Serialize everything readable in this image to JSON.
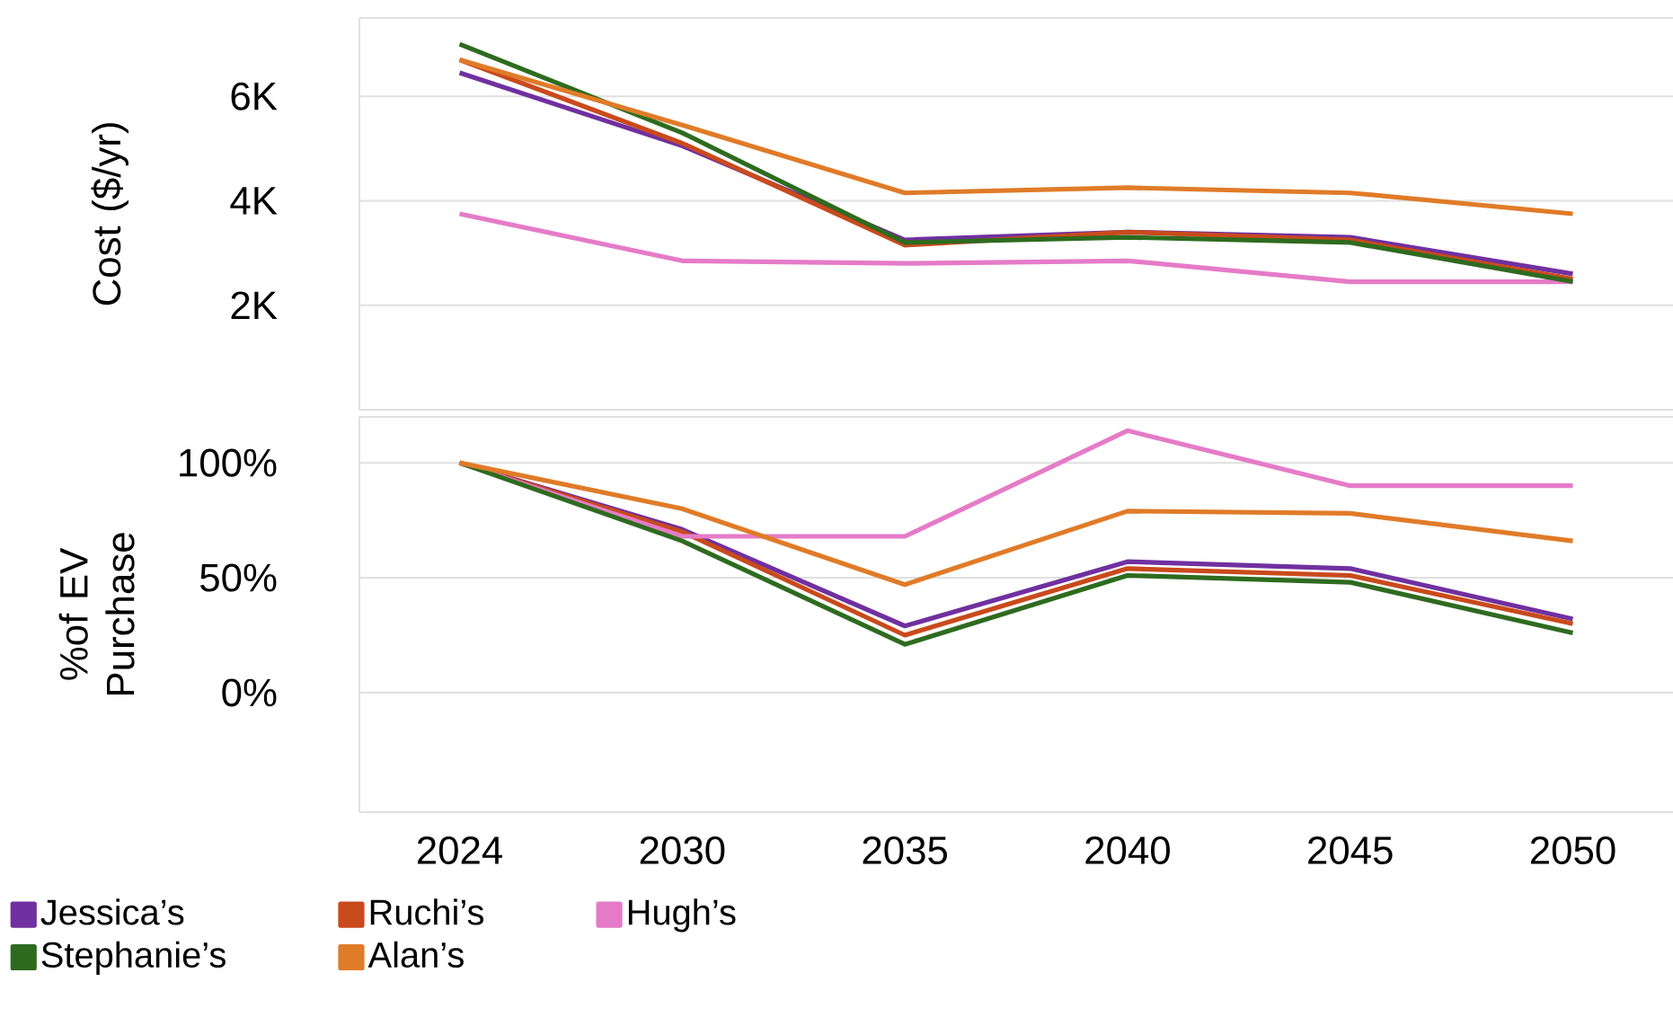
{
  "chart_data": [
    {
      "type": "line",
      "ylabel": "Cost ($/yr)",
      "categories": [
        "2024",
        "2030",
        "2035",
        "2040",
        "2045",
        "2050"
      ],
      "ylim": [
        0,
        7.5
      ],
      "yticks": [
        {
          "value": 2,
          "label": "2K"
        },
        {
          "value": 4,
          "label": "4K"
        },
        {
          "value": 6,
          "label": "6K"
        }
      ],
      "grid": "y",
      "tick_labels": "y",
      "series": [
        {
          "color": "#7030a0",
          "values": [
            6.45,
            5.05,
            3.25,
            3.4,
            3.3,
            2.6
          ]
        },
        {
          "color": "#c94a1c",
          "values": [
            6.7,
            5.1,
            3.15,
            3.4,
            3.25,
            2.5
          ]
        },
        {
          "color": "#e57bc8",
          "values": [
            3.75,
            2.85,
            2.8,
            2.85,
            2.45,
            2.45
          ]
        },
        {
          "color": "#2e6b1f",
          "values": [
            7.0,
            5.3,
            3.2,
            3.3,
            3.2,
            2.45
          ]
        },
        {
          "color": "#e07b28",
          "values": [
            6.7,
            5.45,
            4.15,
            4.25,
            4.15,
            3.75
          ]
        }
      ]
    },
    {
      "type": "line",
      "ylabel": "%of EV Purchase",
      "categories": [
        "2024",
        "2030",
        "2035",
        "2040",
        "2045",
        "2050"
      ],
      "ylim": [
        -52,
        120
      ],
      "yticks": [
        {
          "value": 0,
          "label": "0%"
        },
        {
          "value": 50,
          "label": "50%"
        },
        {
          "value": 100,
          "label": "100%"
        }
      ],
      "grid": "y",
      "legend": "bottom",
      "series": [
        {
          "name": "Jessica’s",
          "color": "#7030a0",
          "values": [
            100,
            71,
            29,
            57,
            54,
            32
          ]
        },
        {
          "name": "Ruchi’s",
          "color": "#c94a1c",
          "values": [
            100,
            70,
            25,
            54,
            51,
            30
          ]
        },
        {
          "name": "Hugh’s",
          "color": "#e57bc8",
          "values": [
            100,
            68,
            68,
            114,
            90,
            90
          ]
        },
        {
          "name": "Stephanie’s",
          "color": "#2e6b1f",
          "values": [
            100,
            66,
            21,
            51,
            48,
            26
          ]
        },
        {
          "name": "Alan’s",
          "color": "#e07b28",
          "values": [
            100,
            80,
            47,
            79,
            78,
            66
          ]
        }
      ]
    }
  ]
}
